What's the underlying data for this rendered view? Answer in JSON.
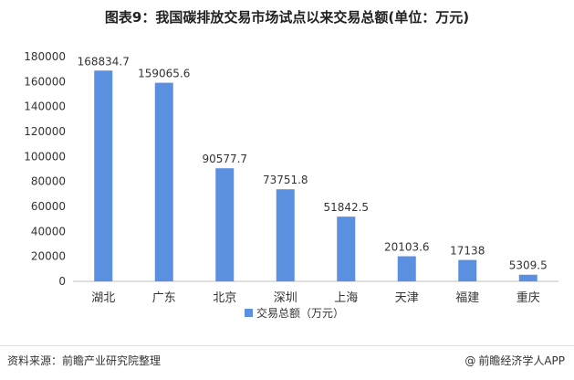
{
  "title": "图表9：我国碳排放交易市场试点以来交易总额(单位：万元)",
  "footer": {
    "source": "资料来源：前瞻产业研究院整理",
    "brand": "前瞻经济学人APP",
    "brand_icon": "at-icon"
  },
  "chart_data": {
    "type": "bar",
    "categories": [
      "湖北",
      "广东",
      "北京",
      "深圳",
      "上海",
      "天津",
      "福建",
      "重庆"
    ],
    "values": [
      168834.7,
      159065.6,
      90577.7,
      73751.8,
      51842.5,
      20103.6,
      17138,
      5309.5
    ],
    "value_labels": [
      "168834.7",
      "159065.6",
      "90577.7",
      "73751.8",
      "51842.5",
      "20103.6",
      "17138",
      "5309.5"
    ],
    "yticks": [
      "0",
      "20000",
      "40000",
      "60000",
      "80000",
      "100000",
      "120000",
      "140000",
      "160000",
      "180000"
    ],
    "ylim": [
      0,
      180000
    ],
    "legend": "交易总额（万元）",
    "legend_position": "bottom",
    "bar_color": "#5b8fe0",
    "grid": false
  }
}
